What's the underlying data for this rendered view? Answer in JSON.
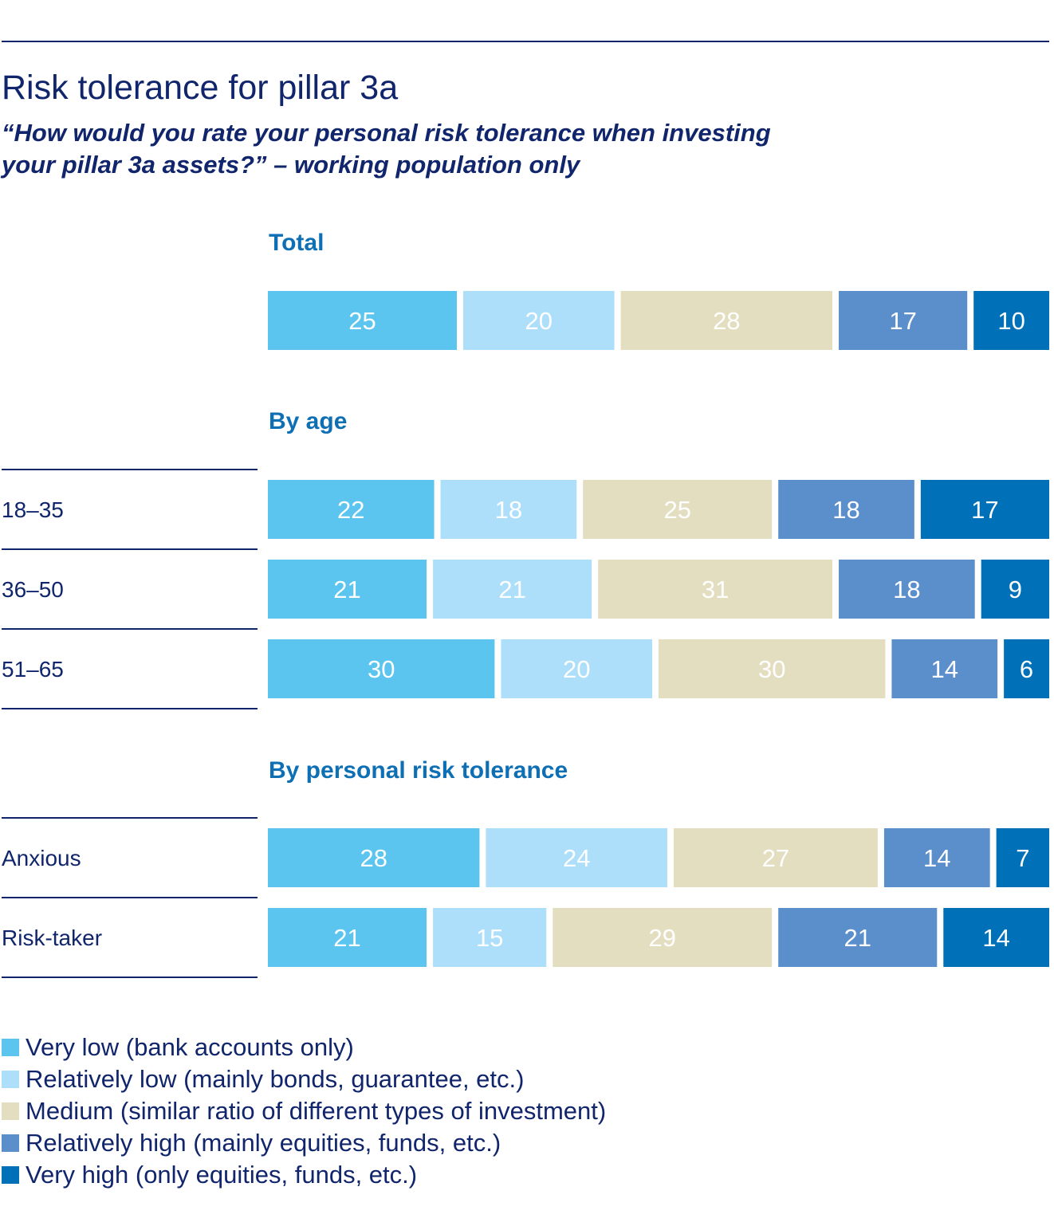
{
  "title": "Risk tolerance for pillar 3a",
  "subtitle_lines": [
    "“How would you rate your personal risk tolerance when investing",
    "your pillar 3a assets?” – working population only"
  ],
  "chart_data": {
    "type": "bar",
    "orientation": "horizontal",
    "stacked": true,
    "normalized_to": 100,
    "colors": [
      "#5bc5ef",
      "#addffa",
      "#e4dec1",
      "#5a8fcc",
      "#0071b8"
    ],
    "series_names": [
      "Very low (bank accounts only)",
      "Relatively low (mainly bonds, guarantee, etc.)",
      "Medium (similar ratio of different types of investment)",
      "Relatively high (mainly equities, funds, etc.)",
      "Very high (only equities, funds, etc.)"
    ],
    "groups": [
      {
        "title": "Total",
        "rows": [
          {
            "label": "",
            "values": [
              25,
              20,
              28,
              17,
              10
            ]
          }
        ]
      },
      {
        "title": "By age",
        "rows": [
          {
            "label": "18–35",
            "values": [
              22,
              18,
              25,
              18,
              17
            ]
          },
          {
            "label": "36–50",
            "values": [
              21,
              21,
              31,
              18,
              9
            ]
          },
          {
            "label": "51–65",
            "values": [
              30,
              20,
              30,
              14,
              6
            ]
          }
        ]
      },
      {
        "title": "By personal risk tolerance",
        "rows": [
          {
            "label": "Anxious",
            "values": [
              28,
              24,
              27,
              14,
              7
            ]
          },
          {
            "label": "Risk-taker",
            "values": [
              21,
              15,
              29,
              21,
              14
            ]
          }
        ]
      }
    ],
    "legend_position": "bottom-left",
    "grid": false
  }
}
